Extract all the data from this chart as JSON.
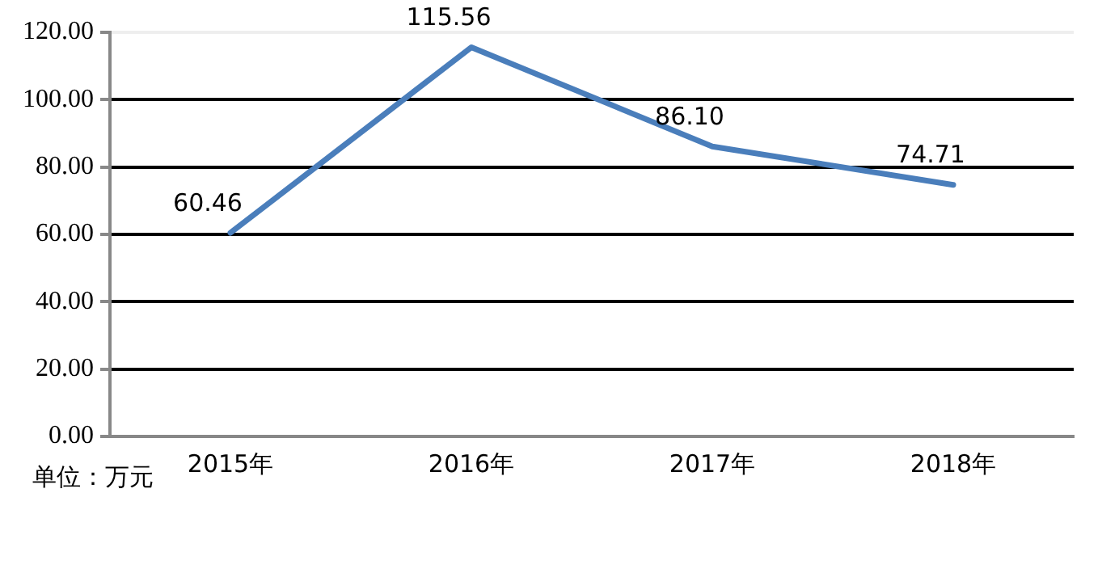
{
  "chart_data": {
    "type": "line",
    "categories": [
      "2015年",
      "2016年",
      "2017年",
      "2018年"
    ],
    "series": [
      {
        "color": "#4a7ebb",
        "values": [
          60.46,
          115.56,
          86.1,
          74.71
        ],
        "value_labels": [
          "60.46",
          "115.56",
          "86.10",
          "74.71"
        ]
      }
    ],
    "ylim": [
      0,
      120
    ],
    "yticks": [
      {
        "value": 0,
        "label": "0.00"
      },
      {
        "value": 20,
        "label": "20.00"
      },
      {
        "value": 40,
        "label": "40.00"
      },
      {
        "value": 60,
        "label": "60.00"
      },
      {
        "value": 80,
        "label": "80.00"
      },
      {
        "value": 100,
        "label": "100.00"
      },
      {
        "value": 120,
        "label": "120.00"
      }
    ],
    "grid": "y",
    "legend": false,
    "marker": "none",
    "line_style": "solid",
    "annotations": [
      "单位：万元"
    ]
  }
}
